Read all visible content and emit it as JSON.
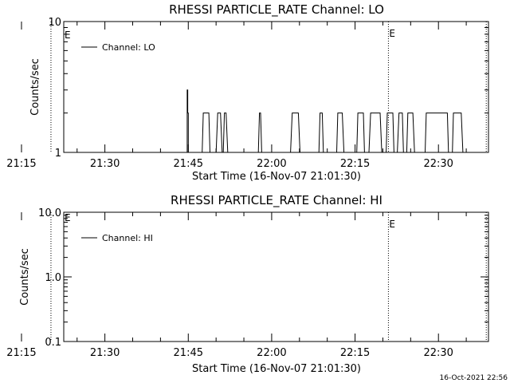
{
  "footer": {
    "timestamp": "16-Oct-2021 22:56"
  },
  "chart_data": [
    {
      "type": "line",
      "title": "RHESSI PARTICLE_RATE Channel: LO",
      "xlabel": "Start Time (16-Nov-07 21:01:30)",
      "ylabel": "Counts/sec",
      "yscale": "log",
      "ylim": [
        1,
        10
      ],
      "xlim_minutes": [
        21.6,
        98.0
      ],
      "y_ticks": [
        {
          "value": 1,
          "label": "1"
        },
        {
          "value": 10,
          "label": "10"
        }
      ],
      "x_ticks": [
        {
          "value": 14.0,
          "label": "21:15"
        },
        {
          "value": 29.0,
          "label": "21:30"
        },
        {
          "value": 44.0,
          "label": "21:45"
        },
        {
          "value": 59.0,
          "label": "22:00"
        },
        {
          "value": 74.0,
          "label": "22:15"
        },
        {
          "value": 89.0,
          "label": "22:30"
        }
      ],
      "event_lines": [
        {
          "x": 19.3,
          "label": ""
        },
        {
          "x": 80.0,
          "label": "E"
        },
        {
          "x": 97.6,
          "label": ""
        }
      ],
      "left_marker": "E",
      "legend": {
        "label": "Channel: LO",
        "placement": "top-left"
      },
      "series": [
        {
          "name": "Channel: LO",
          "x": [
            43.8,
            43.8,
            43.9,
            43.9,
            44.0,
            44.0,
            46.5,
            46.7,
            47.7,
            47.9,
            49.0,
            49.3,
            49.8,
            50.1,
            50.3,
            50.5,
            50.8,
            51.1,
            56.6,
            56.8,
            57.0,
            57.2,
            62.4,
            62.7,
            63.8,
            64.1,
            67.5,
            67.7,
            68.1,
            68.3,
            70.7,
            70.9,
            71.7,
            72.0,
            74.3,
            74.5,
            75.5,
            75.7,
            76.5,
            76.8,
            78.5,
            78.8,
            79.6,
            79.8,
            80.8,
            81.0,
            81.6,
            81.9,
            82.5,
            82.7,
            83.3,
            83.5,
            84.4,
            84.7,
            86.6,
            86.8,
            90.6,
            90.8,
            91.5,
            91.7,
            93.1,
            93.4
          ],
          "y": [
            1,
            3,
            3,
            2,
            2,
            1,
            1,
            2,
            2,
            1,
            1,
            2,
            2,
            1,
            1,
            2,
            2,
            1,
            1,
            2,
            2,
            1,
            1,
            2,
            2,
            1,
            1,
            2,
            2,
            1,
            1,
            2,
            2,
            1,
            1,
            2,
            2,
            1,
            1,
            2,
            2,
            1,
            1,
            2,
            2,
            1,
            1,
            2,
            2,
            1,
            1,
            2,
            2,
            1,
            1,
            2,
            2,
            1,
            1,
            2,
            2,
            1
          ]
        }
      ]
    },
    {
      "type": "line",
      "title": "RHESSI PARTICLE_RATE Channel: HI",
      "xlabel": "Start Time (16-Nov-07 21:01:30)",
      "ylabel": "Counts/sec",
      "yscale": "log",
      "ylim": [
        0.1,
        10
      ],
      "xlim_minutes": [
        21.6,
        98.0
      ],
      "y_ticks": [
        {
          "value": 0.1,
          "label": "0.1"
        },
        {
          "value": 1,
          "label": "1.0"
        },
        {
          "value": 10,
          "label": "10.0"
        }
      ],
      "x_ticks": [
        {
          "value": 14.0,
          "label": "21:15"
        },
        {
          "value": 29.0,
          "label": "21:30"
        },
        {
          "value": 44.0,
          "label": "21:45"
        },
        {
          "value": 59.0,
          "label": "22:00"
        },
        {
          "value": 74.0,
          "label": "22:15"
        },
        {
          "value": 89.0,
          "label": "22:30"
        }
      ],
      "event_lines": [
        {
          "x": 19.3,
          "label": ""
        },
        {
          "x": 80.0,
          "label": "E"
        },
        {
          "x": 97.6,
          "label": ""
        }
      ],
      "left_marker": "E",
      "legend": {
        "label": "Channel: HI",
        "placement": "top-left"
      },
      "series": [
        {
          "name": "Channel: HI",
          "x": [],
          "y": []
        }
      ]
    }
  ]
}
